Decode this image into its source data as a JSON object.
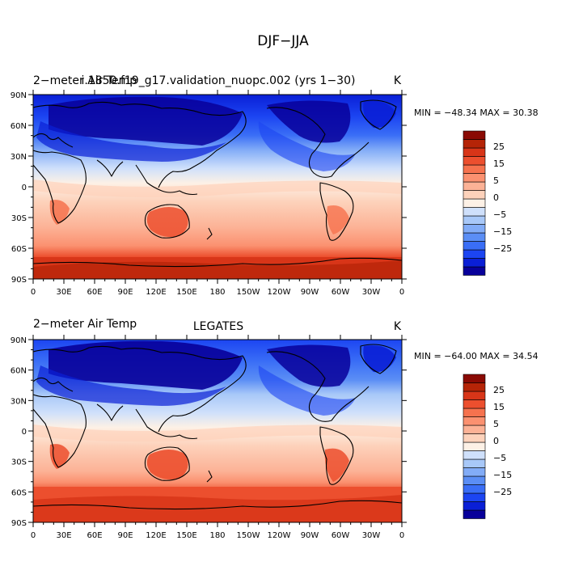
{
  "figure": {
    "title": "DJF−JJA"
  },
  "palette": [
    "#08009a",
    "#0a1fd6",
    "#1c45f2",
    "#3a6ef6",
    "#5b8ef5",
    "#82acf7",
    "#a8c8f8",
    "#cfe0fb",
    "#fdf1e6",
    "#fdd2bb",
    "#fcb296",
    "#fb9170",
    "#f6724e",
    "#ec4f2e",
    "#d83518",
    "#b52407",
    "#8a0a04"
  ],
  "legend_levels": [
    -30,
    -25,
    -20,
    -15,
    -10,
    -5,
    -2.5,
    0,
    2.5,
    5,
    10,
    15,
    20,
    25,
    30
  ],
  "colorbar_labels": [
    "25",
    "15",
    "5",
    "0",
    "−5",
    "−15",
    "−25"
  ],
  "lat_labels": [
    "90N",
    "60N",
    "30N",
    "0",
    "30S",
    "60S",
    "90S"
  ],
  "lon_labels": [
    "0",
    "30E",
    "60E",
    "90E",
    "120E",
    "150E",
    "180",
    "150W",
    "120W",
    "90W",
    "60W",
    "30W",
    "0"
  ],
  "chart_data": [
    {
      "type": "heatmap",
      "left_title": "2−meter Air Temp",
      "center_title": "i.1850.f19_g17.validation_nuopc.002 (yrs 1−30)",
      "units": "K",
      "stats": "MIN = −48.34  MAX =   30.38",
      "min": -48.34,
      "max": 30.38,
      "xlim": [
        0,
        360
      ],
      "ylim": [
        -90,
        90
      ],
      "x_ticks": [
        0,
        30,
        60,
        90,
        120,
        150,
        180,
        210,
        240,
        270,
        300,
        330,
        360
      ],
      "y_ticks": [
        90,
        60,
        30,
        0,
        -30,
        -60,
        -90
      ]
    },
    {
      "type": "heatmap",
      "left_title": "2−meter Air Temp",
      "center_title": "LEGATES",
      "units": "K",
      "stats": "MIN = −64.00  MAX =   34.54",
      "min": -64.0,
      "max": 34.54,
      "xlim": [
        0,
        360
      ],
      "ylim": [
        -90,
        90
      ],
      "x_ticks": [
        0,
        30,
        60,
        90,
        120,
        150,
        180,
        210,
        240,
        270,
        300,
        330,
        360
      ],
      "y_ticks": [
        90,
        60,
        30,
        0,
        -30,
        -60,
        -90
      ]
    }
  ]
}
